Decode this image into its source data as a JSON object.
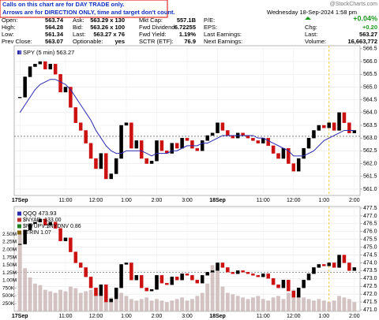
{
  "header": {
    "notice": [
      "Calls on this chart are for DAY TRADE only.",
      "Arrows are for DIRECTION ONLY, time and target don't count."
    ],
    "rows": [
      [
        "Open:",
        "563.74",
        "Ask:",
        "563.29 x 130",
        "Mkt Cap:",
        "557.1B",
        "P/E:"
      ],
      [
        "High:",
        "564.28",
        "Bid:",
        "563.26 x 100",
        "Fwd Dividend:",
        "6.72255",
        "EPS:"
      ],
      [
        "Low:",
        "561.34",
        "Last:",
        "563.27 x 76",
        "Fwd Yield:",
        "1.19%",
        "Last Earnings:"
      ],
      [
        "Prev Close:",
        "563.07",
        "Optionable:",
        "yes",
        "SCTR (ETF):",
        "76.9",
        "Next Earnings:"
      ]
    ],
    "brand": "@StockCharts.com",
    "date": "Wednesday 18-Sep-2024 1:58 pm",
    "change_pct": "+0.04%",
    "quote_rows": [
      [
        "Chg:",
        "+0.20"
      ],
      [
        "Last:",
        "563.27"
      ],
      [
        "Volume:",
        "16,663,772"
      ]
    ]
  },
  "chart_data": [
    {
      "type": "candle",
      "legend": "SPY (5 min) 563.27",
      "reference_line": 563.07,
      "categories": [
        "17Sep",
        null,
        null,
        null,
        null,
        null,
        null,
        null,
        null,
        "11:00",
        null,
        null,
        null,
        null,
        null,
        "12:00",
        null,
        null,
        null,
        null,
        null,
        "1:00",
        null,
        null,
        null,
        null,
        null,
        "2:00",
        null,
        null,
        null,
        null,
        null,
        "3:00",
        null,
        null,
        null,
        null,
        null,
        "18Sep",
        null,
        null,
        null,
        null,
        null,
        null,
        null,
        null,
        "11:00",
        null,
        null,
        null,
        null,
        null,
        "12:00",
        null,
        null,
        null,
        null,
        null,
        "1:00",
        null,
        null,
        null,
        null,
        null,
        "2:00"
      ],
      "ylim": [
        560.75,
        566.62
      ],
      "yticks": [
        {
          "value": 561,
          "label": "561.0"
        },
        561.5,
        {
          "value": 562,
          "label": "562.0"
        },
        562.5,
        {
          "value": 563,
          "label": "563.0"
        },
        563.5,
        {
          "value": 564,
          "label": "564.0"
        },
        564.5,
        {
          "value": 565,
          "label": "565.0"
        },
        565.5,
        {
          "value": 566,
          "label": "566.0"
        },
        566.5
      ],
      "grid": true,
      "series": [
        {
          "name": "SPY (5 min) 563.27",
          "color": "#000000",
          "down_color": "#cc1111",
          "values": [
            564.6,
            565.4,
            565.8,
            565.9,
            566.0,
            565.7,
            565.9,
            565.5,
            564.8,
            565.0,
            564.2,
            563.6,
            563.3,
            562.8,
            562.2,
            561.8,
            562.4,
            561.4,
            561.6,
            562.2,
            563.5,
            563.6,
            562.6,
            562.9,
            562.2,
            562.0,
            562.1,
            562.9,
            562.5,
            562.4,
            562.8,
            562.6,
            563.0,
            562.9,
            562.6,
            562.5,
            562.9,
            563.1,
            563.2,
            563.6,
            563.3,
            563.1,
            563.0,
            563.2,
            563.1,
            563.0,
            562.9,
            562.8,
            563.0,
            562.7,
            562.4,
            562.2,
            562.6,
            562.0,
            561.7,
            562.2,
            562.6,
            563.0,
            563.3,
            563.5,
            563.4,
            563.6,
            563.3,
            564.0,
            563.6,
            563.2,
            563.3
          ]
        },
        {
          "color": "#2b2bb0",
          "values": [
            564.0,
            564.3,
            564.6,
            564.9,
            565.1,
            565.2,
            565.3,
            565.3,
            565.2,
            565.1,
            564.9,
            564.6,
            564.3,
            564.0,
            563.7,
            563.3,
            563.0,
            562.7,
            562.5,
            562.4,
            562.4,
            562.5,
            562.5,
            562.5,
            562.5,
            562.4,
            562.3,
            562.4,
            562.4,
            562.4,
            562.5,
            562.5,
            562.6,
            562.7,
            562.7,
            562.7,
            562.8,
            562.8,
            562.9,
            563.0,
            563.1,
            563.1,
            563.1,
            563.1,
            563.1,
            563.1,
            563.1,
            563.0,
            563.0,
            562.9,
            562.8,
            562.7,
            562.6,
            562.5,
            562.3,
            562.3,
            562.3,
            562.4,
            562.5,
            562.7,
            562.9,
            563.0,
            563.1,
            563.2,
            563.3,
            563.3,
            563.3
          ]
        }
      ]
    },
    {
      "type": "candle",
      "legend": "QQQ 473.93",
      "indicators": [
        "$NYAD -133.00",
        "$NYUPV:$NYDNV 0.86",
        "$TRIN 1.07"
      ],
      "reference_line": 473.4,
      "categories": [
        "17Sep",
        null,
        null,
        null,
        null,
        null,
        null,
        null,
        null,
        "11:00",
        null,
        null,
        null,
        null,
        null,
        "12:00",
        null,
        null,
        null,
        null,
        null,
        "1:00",
        null,
        null,
        null,
        null,
        null,
        "2:00",
        null,
        null,
        null,
        null,
        null,
        "3:00",
        null,
        null,
        null,
        null,
        null,
        "18Sep",
        null,
        null,
        null,
        null,
        null,
        null,
        null,
        null,
        "11:00",
        null,
        null,
        null,
        null,
        null,
        "12:00",
        null,
        null,
        null,
        null,
        null,
        "1:00",
        null,
        null,
        null,
        null,
        null,
        "2:00"
      ],
      "ylim": [
        470.9,
        477.6
      ],
      "yticks": [
        {
          "value": 471,
          "label": "471.0"
        },
        471.5,
        {
          "value": 472,
          "label": "472.0"
        },
        472.5,
        {
          "value": 473,
          "label": "473.0"
        },
        473.5,
        {
          "value": 474,
          "label": "474.0"
        },
        474.5,
        {
          "value": 475,
          "label": "475.0"
        },
        475.5,
        {
          "value": 476,
          "label": "476.0"
        },
        476.5,
        {
          "value": 477,
          "label": "477.0"
        },
        477.5
      ],
      "y2lim": [
        0,
        3400000
      ],
      "y2ticks": [
        {
          "value": 250000,
          "label": "250K"
        },
        {
          "value": 500000,
          "label": "500K"
        },
        {
          "value": 750000,
          "label": "750K"
        },
        {
          "value": 1000000,
          "label": "1.00M"
        },
        {
          "value": 1250000,
          "label": "1.25M"
        },
        {
          "value": 1500000,
          "label": "1.50M"
        },
        {
          "value": 1750000,
          "label": "1.75M"
        },
        {
          "value": 2000000,
          "label": "2.00M"
        },
        {
          "value": 2250000,
          "label": "2.25M"
        },
        {
          "value": 2500000,
          "label": "2.50M"
        }
      ],
      "grid": true,
      "series": [
        {
          "name": "QQQ 473.93",
          "color": "#000000",
          "down_color": "#cc1111",
          "values": [
            475.2,
            476.1,
            476.5,
            476.6,
            476.8,
            476.4,
            476.6,
            476.2,
            475.4,
            475.6,
            474.7,
            474.0,
            473.7,
            473.1,
            472.4,
            471.9,
            472.6,
            471.5,
            471.7,
            472.4,
            473.9,
            474.0,
            472.9,
            473.2,
            472.4,
            472.2,
            472.3,
            473.2,
            472.7,
            472.6,
            473.1,
            472.9,
            473.3,
            473.2,
            472.9,
            472.7,
            473.2,
            473.4,
            473.5,
            474.0,
            473.7,
            473.4,
            473.3,
            473.5,
            473.4,
            473.3,
            473.2,
            473.1,
            473.3,
            473.0,
            472.6,
            472.4,
            472.9,
            472.2,
            471.8,
            472.4,
            472.9,
            473.3,
            473.7,
            473.9,
            473.8,
            474.0,
            473.7,
            474.5,
            474.0,
            473.5,
            473.7
          ]
        },
        {
          "type": "bar",
          "axis": "y2",
          "color": "#c9b4b4",
          "values": [
            2600000,
            1400000,
            1100000,
            900000,
            850000,
            700000,
            650000,
            600000,
            700000,
            650000,
            800000,
            750000,
            600000,
            650000,
            700000,
            600000,
            500000,
            650000,
            450000,
            400000,
            600000,
            500000,
            400000,
            350000,
            400000,
            450000,
            350000,
            400000,
            350000,
            300000,
            350000,
            400000,
            450000,
            350000,
            400000,
            500000,
            600000,
            900000,
            1500000,
            1300000,
            800000,
            600000,
            550000,
            500000,
            450000,
            400000,
            450000,
            500000,
            400000,
            350000,
            450000,
            500000,
            400000,
            600000,
            700000,
            500000,
            450000,
            400000,
            350000,
            400000,
            350000,
            300000,
            350000,
            500000,
            450000,
            400000,
            300000
          ]
        }
      ]
    }
  ]
}
